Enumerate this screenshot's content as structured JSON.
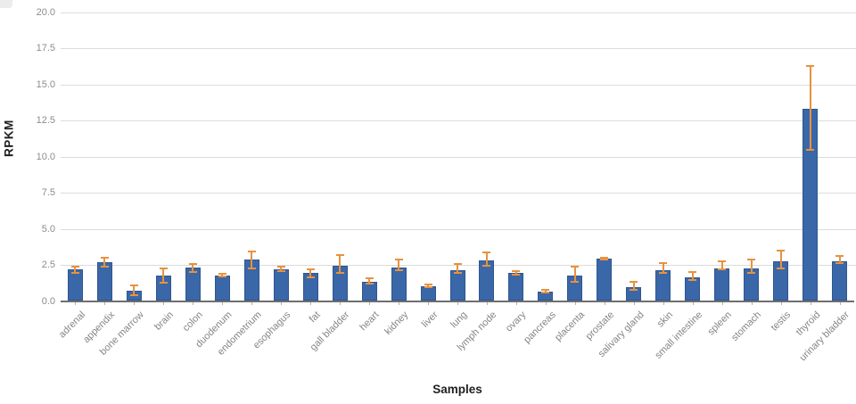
{
  "chart_data": {
    "type": "bar",
    "title": "",
    "xlabel": "Samples",
    "ylabel": "RPKM",
    "ylim": [
      0,
      20
    ],
    "ytick_step": 2.5,
    "ytick_labels": [
      "0.0",
      "2.5",
      "5.0",
      "7.5",
      "10.0",
      "12.5",
      "15.0",
      "17.5",
      "20.0"
    ],
    "grid": "horizontal",
    "legend": "none",
    "categories": [
      "adrenal",
      "appendix",
      "bone marrow",
      "brain",
      "colon",
      "duodenum",
      "endometrium",
      "esophagus",
      "fat",
      "gall bladder",
      "heart",
      "kidney",
      "liver",
      "lung",
      "lymph node",
      "ovary",
      "pancreas",
      "placenta",
      "prostate",
      "salivary gland",
      "skin",
      "small intestine",
      "spleen",
      "stomach",
      "testis",
      "thyroid",
      "urinary bladder"
    ],
    "values": [
      2.2,
      2.7,
      0.75,
      1.8,
      2.35,
      1.8,
      2.9,
      2.2,
      1.95,
      2.45,
      1.35,
      2.35,
      1.05,
      2.15,
      2.85,
      1.95,
      0.65,
      1.8,
      2.95,
      1.0,
      2.15,
      1.7,
      2.3,
      2.3,
      2.8,
      13.35,
      2.8
    ],
    "error_low": [
      2.0,
      2.4,
      0.45,
      1.3,
      2.05,
      1.75,
      2.3,
      2.1,
      1.7,
      2.0,
      1.25,
      2.15,
      1.0,
      1.95,
      2.45,
      1.85,
      0.6,
      1.35,
      2.9,
      0.8,
      2.0,
      1.5,
      2.2,
      1.95,
      2.3,
      10.5,
      2.65
    ],
    "error_high": [
      2.4,
      3.0,
      1.1,
      2.3,
      2.6,
      1.9,
      3.45,
      2.4,
      2.25,
      3.2,
      1.6,
      2.9,
      1.2,
      2.6,
      3.4,
      2.1,
      0.8,
      2.4,
      3.05,
      1.35,
      2.65,
      2.05,
      2.8,
      2.9,
      3.5,
      16.3,
      3.15
    ],
    "colors": {
      "bar_fill": "#3a67a8",
      "bar_border": "#2f568f",
      "error_bar": "#e8923f",
      "gridline": "#dcdcdc",
      "axis_line": "#6e6e6e",
      "tick_label": "#8c8c8c",
      "axis_title": "#1f1f1f",
      "background": "#ffffff"
    }
  }
}
